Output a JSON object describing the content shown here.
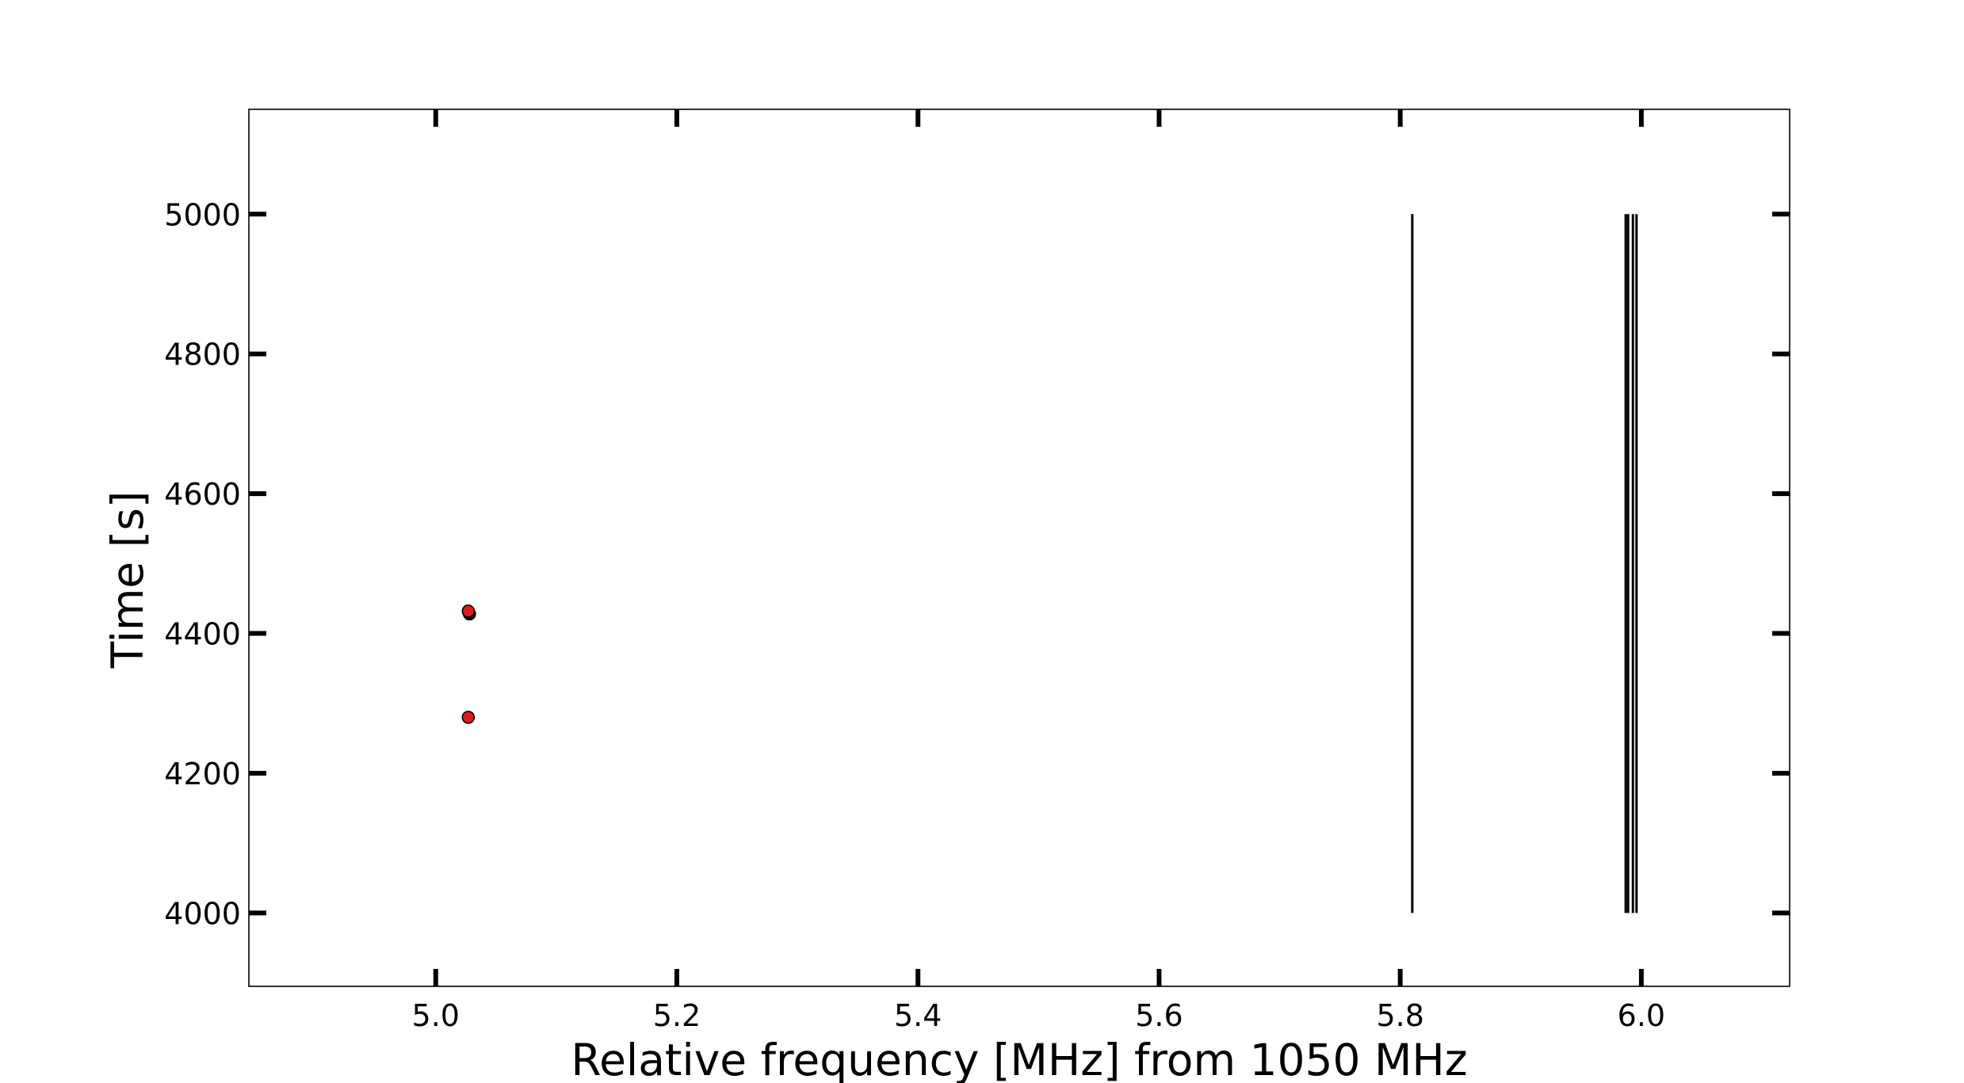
{
  "chart_data": {
    "type": "scatter",
    "title": "",
    "xlabel": "Relative frequency [MHz] from 1050 MHz",
    "ylabel": "Time [s]",
    "xlim": [
      4.845,
      6.123
    ],
    "ylim": [
      3895,
      5150
    ],
    "xticks": [
      "5.0",
      "5.2",
      "5.4",
      "5.6",
      "5.8",
      "6.0"
    ],
    "xtick_values": [
      5.0,
      5.2,
      5.4,
      5.6,
      5.8,
      6.0
    ],
    "yticks": [
      "4000",
      "4200",
      "4400",
      "4600",
      "4800",
      "5000"
    ],
    "ytick_values": [
      4000,
      4200,
      4400,
      4600,
      4800,
      5000
    ],
    "grid": false,
    "legend": "none",
    "series": [
      {
        "marker": "vertical-line",
        "color": "#000000",
        "lines": [
          {
            "x": 5.81,
            "y_start": 4000,
            "y_end": 5000
          },
          {
            "x": 5.987,
            "y_start": 4000,
            "y_end": 5000
          },
          {
            "x": 5.989,
            "y_start": 4000,
            "y_end": 5000
          },
          {
            "x": 5.993,
            "y_start": 4000,
            "y_end": 5000
          },
          {
            "x": 5.996,
            "y_start": 4000,
            "y_end": 5000
          }
        ]
      },
      {
        "marker": "circle",
        "color": "#000000",
        "points": [
          {
            "x": 5.028,
            "y": 4428
          }
        ]
      },
      {
        "marker": "circle",
        "color": "#e31a1c",
        "points": [
          {
            "x": 5.027,
            "y": 4432
          },
          {
            "x": 5.027,
            "y": 4280
          }
        ]
      }
    ]
  }
}
